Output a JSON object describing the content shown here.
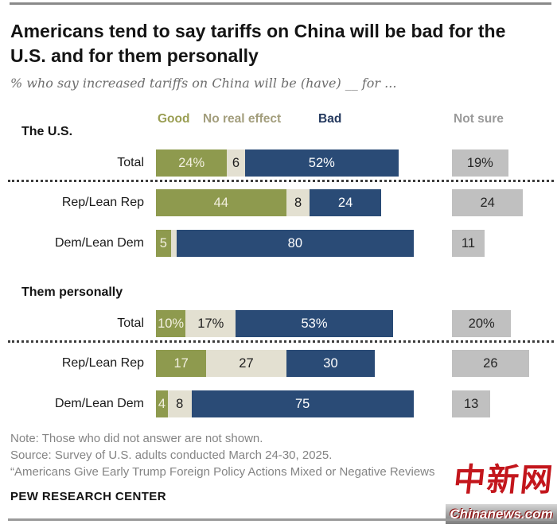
{
  "header": {
    "title": "Americans tend to say tariffs on China will be bad for the U.S. and for them personally",
    "subtitle": "% who say increased tariffs on China will be (have) __ for ..."
  },
  "legend": [
    {
      "key": "good",
      "label": "Good",
      "bar_color": "#8E9A4E",
      "label_color": "#9A9E53",
      "text_color": "#F3F0E0"
    },
    {
      "key": "no_real_effect",
      "label": "No real effect",
      "bar_color": "#E3E0D1",
      "label_color": "#A39E7D",
      "text_color": "#1E1E1E"
    },
    {
      "key": "bad",
      "label": "Bad",
      "bar_color": "#2A4B76",
      "label_color": "#24395E",
      "text_color": "#FFFFFF"
    },
    {
      "key": "not_sure",
      "label": "Not sure",
      "bar_color": "#C0C0C0",
      "label_color": "#9A9A9A",
      "text_color": "#262626"
    }
  ],
  "chart_data": {
    "type": "bar",
    "orientation": "horizontal",
    "stacked": true,
    "unit": "%",
    "axis_max": 100,
    "grid": false,
    "legend_position": "top",
    "categories": [
      "Good",
      "No real effect",
      "Bad",
      "Not sure"
    ],
    "sections": [
      {
        "label": "The U.S.",
        "rows": [
          {
            "label": "Total",
            "values": {
              "good": 24,
              "no_real_effect": 6,
              "bad": 52,
              "not_sure": 19
            },
            "labels": {
              "good": "24%",
              "no_real_effect": "6",
              "bad": "52%",
              "not_sure": "19%"
            }
          },
          {
            "label": "Rep/Lean Rep",
            "values": {
              "good": 44,
              "no_real_effect": 8,
              "bad": 24,
              "not_sure": 24
            },
            "labels": {
              "good": "44",
              "no_real_effect": "8",
              "bad": "24",
              "not_sure": "24"
            }
          },
          {
            "label": "Dem/Lean Dem",
            "values": {
              "good": 5,
              "no_real_effect": 2,
              "bad": 80,
              "not_sure": 11
            },
            "labels": {
              "good": "5",
              "no_real_effect": "",
              "bad": "80",
              "not_sure": "11"
            }
          }
        ]
      },
      {
        "label": "Them personally",
        "rows": [
          {
            "label": "Total",
            "values": {
              "good": 10,
              "no_real_effect": 17,
              "bad": 53,
              "not_sure": 20
            },
            "labels": {
              "good": "10%",
              "no_real_effect": "17%",
              "bad": "53%",
              "not_sure": "20%"
            }
          },
          {
            "label": "Rep/Lean Rep",
            "values": {
              "good": 17,
              "no_real_effect": 27,
              "bad": 30,
              "not_sure": 26
            },
            "labels": {
              "good": "17",
              "no_real_effect": "27",
              "bad": "30",
              "not_sure": "26"
            }
          },
          {
            "label": "Dem/Lean Dem",
            "values": {
              "good": 4,
              "no_real_effect": 8,
              "bad": 75,
              "not_sure": 13
            },
            "labels": {
              "good": "4",
              "no_real_effect": "8",
              "bad": "75",
              "not_sure": "13"
            }
          }
        ]
      }
    ]
  },
  "footer": {
    "note": "Note: Those who did not answer are not shown.",
    "source": "Source: Survey of U.S. adults conducted March 24-30, 2025.",
    "quote": "“Americans Give Early Trump Foreign Policy Actions Mixed or Negative Reviews",
    "org": "PEW RESEARCH CENTER"
  },
  "watermark": {
    "cn": "中新网",
    "en": "Chinanews.com",
    "color": "#C3161C"
  }
}
